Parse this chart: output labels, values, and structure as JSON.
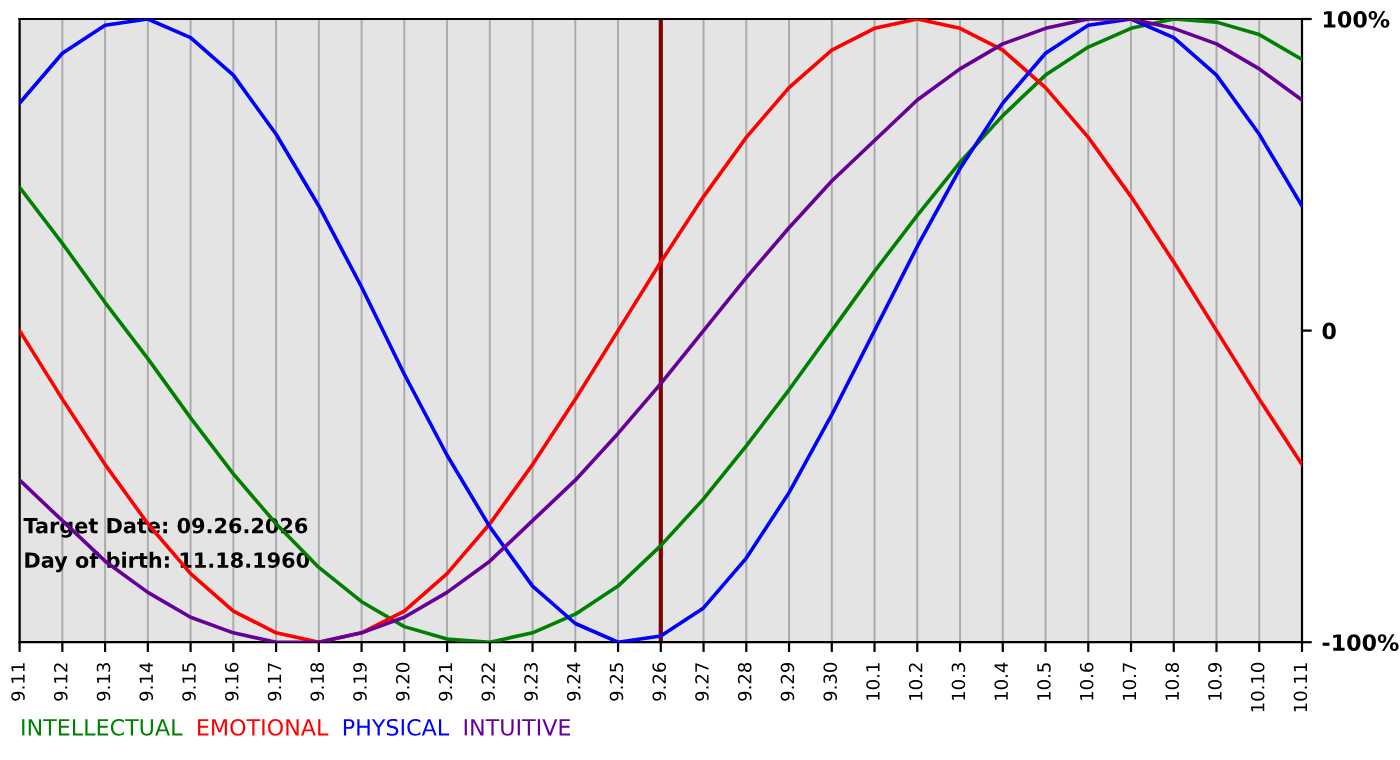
{
  "chart_data": {
    "type": "line",
    "categories": [
      "9.11",
      "9.12",
      "9.13",
      "9.14",
      "9.15",
      "9.16",
      "9.17",
      "9.18",
      "9.19",
      "9.20",
      "9.21",
      "9.22",
      "9.23",
      "9.24",
      "9.25",
      "9.26",
      "9.27",
      "9.28",
      "9.29",
      "9.30",
      "10.1",
      "10.2",
      "10.3",
      "10.4",
      "10.5",
      "10.6",
      "10.7",
      "10.8",
      "10.9",
      "10.10",
      "10.11"
    ],
    "series": [
      {
        "name": "INTELLECTUAL",
        "color": "#008000",
        "values": [
          46,
          28,
          9,
          -9,
          -28,
          -46,
          -62,
          -76,
          -87,
          -95,
          -99,
          -100,
          -97,
          -91,
          -82,
          -69,
          -54,
          -37,
          -19,
          0,
          19,
          37,
          54,
          69,
          82,
          91,
          97,
          100,
          99,
          95,
          87
        ]
      },
      {
        "name": "EMOTIONAL",
        "color": "#ff0000",
        "values": [
          0,
          -22,
          -43,
          -62,
          -78,
          -90,
          -97,
          -100,
          -97,
          -90,
          -78,
          -62,
          -43,
          -22,
          0,
          22,
          43,
          62,
          78,
          90,
          97,
          100,
          97,
          90,
          78,
          62,
          43,
          22,
          0,
          -22,
          -43
        ]
      },
      {
        "name": "PHYSICAL",
        "color": "#0000ff",
        "values": [
          73,
          89,
          98,
          100,
          94,
          82,
          63,
          40,
          14,
          -14,
          -40,
          -63,
          -82,
          -94,
          -100,
          -98,
          -89,
          -73,
          -52,
          -27,
          0,
          27,
          52,
          73,
          89,
          98,
          100,
          94,
          82,
          63,
          40
        ]
      },
      {
        "name": "INTUITIVE",
        "color": "#660099",
        "values": [
          -48,
          -61,
          -74,
          -84,
          -92,
          -97,
          -100,
          -100,
          -97,
          -92,
          -84,
          -74,
          -61,
          -48,
          -33,
          -17,
          0,
          17,
          33,
          48,
          61,
          74,
          84,
          92,
          97,
          100,
          100,
          97,
          92,
          84,
          74
        ]
      }
    ],
    "ylim": [
      -100,
      100
    ],
    "yticks": [
      {
        "value": -100,
        "label": "-100%"
      },
      0,
      {
        "value": 100,
        "label": "100%"
      }
    ],
    "ref_lines": [
      {
        "axis": "x",
        "value": "9.26",
        "color": "#800000"
      }
    ],
    "annotations": [
      "Target Date: 09.26.2026",
      "Day of birth: 11.18.1960"
    ],
    "grid": "x",
    "legend": "bottom",
    "marker": "none",
    "line_style": "solid"
  }
}
